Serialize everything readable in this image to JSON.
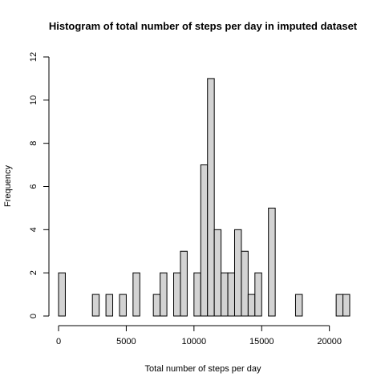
{
  "chart_data": {
    "type": "bar",
    "title": "Histogram of total number of steps per day in imputed dataset",
    "xlabel": "Total number of steps per day",
    "ylabel": "Frequency",
    "bin_width": 500,
    "bins_start": [
      0,
      500,
      1000,
      1500,
      2000,
      2500,
      3000,
      3500,
      4000,
      4500,
      5000,
      5500,
      6000,
      6500,
      7000,
      7500,
      8000,
      8500,
      9000,
      9500,
      10000,
      10500,
      11000,
      11500,
      12000,
      12500,
      13000,
      13500,
      14000,
      14500,
      15000,
      15500,
      16000,
      16500,
      17000,
      17500,
      18000,
      18500,
      19000,
      19500,
      20000,
      20500,
      21000
    ],
    "values": [
      2,
      0,
      0,
      0,
      0,
      1,
      0,
      1,
      0,
      1,
      0,
      2,
      0,
      0,
      1,
      2,
      0,
      2,
      3,
      0,
      2,
      7,
      11,
      4,
      2,
      2,
      4,
      3,
      1,
      2,
      0,
      5,
      0,
      0,
      0,
      1,
      0,
      0,
      0,
      0,
      0,
      1,
      1
    ],
    "xlim": [
      0,
      21500
    ],
    "ylim": [
      0,
      12
    ],
    "x_ticks": [
      0,
      5000,
      10000,
      15000,
      20000
    ],
    "y_ticks": [
      0,
      2,
      4,
      6,
      8,
      10,
      12
    ],
    "x_tick_labels": [
      "0",
      "5000",
      "10000",
      "15000",
      "20000"
    ],
    "y_tick_labels": [
      "0",
      "2",
      "4",
      "6",
      "8",
      "10",
      "12"
    ],
    "bar_fill": "#d3d3d3",
    "bar_stroke": "#000000",
    "grid": false,
    "legend": "none"
  }
}
